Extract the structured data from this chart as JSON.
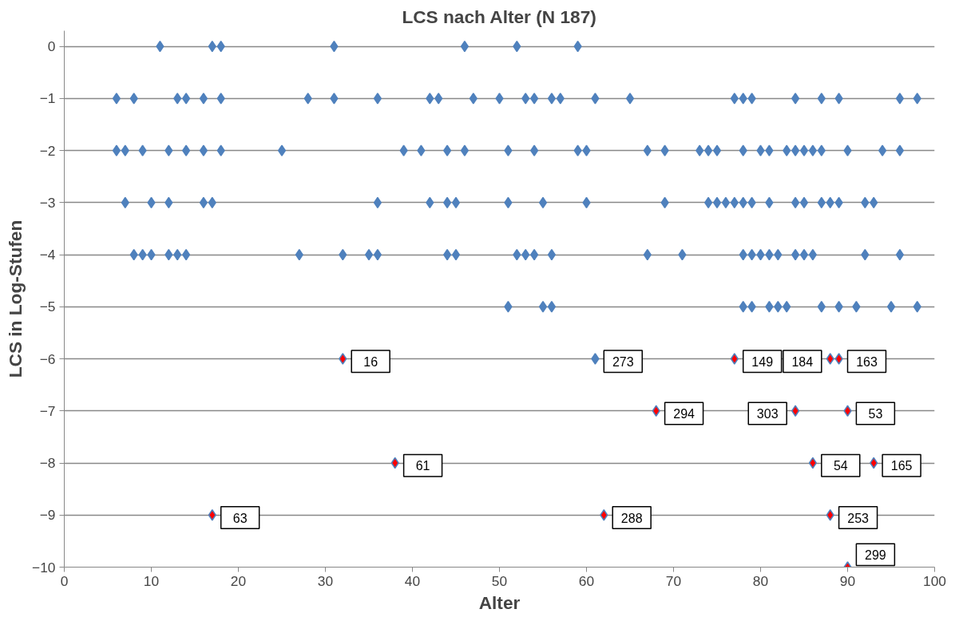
{
  "chart_data": {
    "type": "scatter",
    "title": "LCS nach Alter (N 187)",
    "xlabel": "Alter",
    "ylabel": "LCS in Log-Stufen",
    "xlim": [
      0,
      100
    ],
    "xticks": [
      0,
      10,
      20,
      30,
      40,
      50,
      60,
      70,
      80,
      90,
      100
    ],
    "ylim": [
      -10,
      0.3
    ],
    "yticks": [
      0,
      -1,
      -2,
      -3,
      -4,
      -5,
      -6,
      -7,
      -8,
      -9,
      -10
    ],
    "grid": "y",
    "marker": "diamond",
    "series": [
      {
        "color": "#4f81bd",
        "x": [
          11,
          17,
          18,
          31,
          46,
          52,
          59,
          6,
          8,
          13,
          14,
          16,
          18,
          28,
          31,
          36,
          42,
          43,
          47,
          50,
          53,
          54,
          56,
          57,
          61,
          65,
          77,
          78,
          79,
          84,
          87,
          89,
          96,
          98,
          6,
          7,
          9,
          12,
          14,
          16,
          18,
          25,
          39,
          41,
          44,
          46,
          51,
          54,
          59,
          60,
          67,
          69,
          73,
          74,
          75,
          78,
          80,
          81,
          83,
          84,
          85,
          86,
          87,
          90,
          94,
          96,
          7,
          10,
          12,
          16,
          17,
          36,
          42,
          44,
          45,
          51,
          55,
          60,
          69,
          74,
          75,
          76,
          77,
          78,
          79,
          81,
          84,
          85,
          87,
          88,
          89,
          92,
          93,
          8,
          9,
          10,
          12,
          13,
          14,
          27,
          32,
          35,
          36,
          44,
          45,
          52,
          53,
          54,
          56,
          67,
          71,
          78,
          79,
          80,
          81,
          82,
          84,
          85,
          86,
          92,
          96,
          51,
          55,
          56,
          78,
          79,
          81,
          82,
          83,
          87,
          89,
          91,
          95,
          98,
          61
        ],
        "values": [
          0,
          0,
          0,
          0,
          0,
          0,
          0,
          -1,
          -1,
          -1,
          -1,
          -1,
          -1,
          -1,
          -1,
          -1,
          -1,
          -1,
          -1,
          -1,
          -1,
          -1,
          -1,
          -1,
          -1,
          -1,
          -1,
          -1,
          -1,
          -1,
          -1,
          -1,
          -1,
          -1,
          -2,
          -2,
          -2,
          -2,
          -2,
          -2,
          -2,
          -2,
          -2,
          -2,
          -2,
          -2,
          -2,
          -2,
          -2,
          -2,
          -2,
          -2,
          -2,
          -2,
          -2,
          -2,
          -2,
          -2,
          -2,
          -2,
          -2,
          -2,
          -2,
          -2,
          -2,
          -2,
          -3,
          -3,
          -3,
          -3,
          -3,
          -3,
          -3,
          -3,
          -3,
          -3,
          -3,
          -3,
          -3,
          -3,
          -3,
          -3,
          -3,
          -3,
          -3,
          -3,
          -3,
          -3,
          -3,
          -3,
          -3,
          -3,
          -3,
          -4,
          -4,
          -4,
          -4,
          -4,
          -4,
          -4,
          -4,
          -4,
          -4,
          -4,
          -4,
          -4,
          -4,
          -4,
          -4,
          -4,
          -4,
          -4,
          -4,
          -4,
          -4,
          -4,
          -4,
          -4,
          -4,
          -4,
          -4,
          -5,
          -5,
          -5,
          -5,
          -5,
          -5,
          -5,
          -5,
          -5,
          -5,
          -5,
          -5,
          -5,
          -6
        ]
      },
      {
        "color": "#ff0000",
        "x": [
          32,
          77,
          88,
          89,
          68,
          84,
          90,
          38,
          86,
          93,
          17,
          62,
          88,
          90
        ],
        "values": [
          -6,
          -6,
          -6,
          -6,
          -7,
          -7,
          -7,
          -8,
          -8,
          -8,
          -9,
          -9,
          -9,
          -10
        ]
      }
    ],
    "annotations": [
      {
        "text": "16",
        "x": 32,
        "y": -6
      },
      {
        "text": "273",
        "x": 61,
        "y": -6
      },
      {
        "text": "149",
        "x": 77,
        "y": -6
      },
      {
        "text": "184",
        "x": 88,
        "y": -6
      },
      {
        "text": "163",
        "x": 89,
        "y": -6
      },
      {
        "text": "294",
        "x": 68,
        "y": -7
      },
      {
        "text": "303",
        "x": 84,
        "y": -7
      },
      {
        "text": "53",
        "x": 90,
        "y": -7
      },
      {
        "text": "61",
        "x": 38,
        "y": -8
      },
      {
        "text": "54",
        "x": 86,
        "y": -8
      },
      {
        "text": "165",
        "x": 93,
        "y": -8
      },
      {
        "text": "63",
        "x": 17,
        "y": -9
      },
      {
        "text": "288",
        "x": 62,
        "y": -9
      },
      {
        "text": "253",
        "x": 88,
        "y": -9
      },
      {
        "text": "299",
        "x": 90,
        "y": -10
      }
    ]
  }
}
